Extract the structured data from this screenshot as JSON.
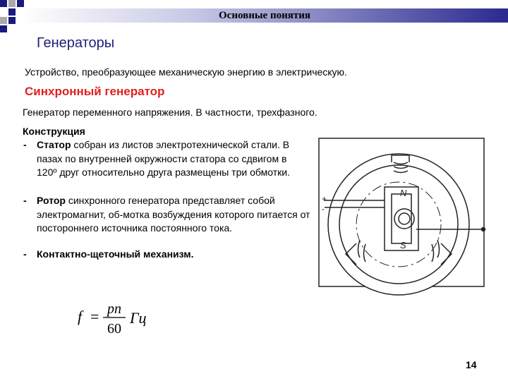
{
  "header": {
    "title": "Основные понятия"
  },
  "heading": "Генераторы",
  "definition": "Устройство, преобразующее механическую энергию в электрическую.",
  "subheading": "Синхронный генератор",
  "description": "Генератор переменного напряжения. В частности, трехфазного.",
  "construction": {
    "title": "Конструкция",
    "items": [
      {
        "marker": "-",
        "bold": "Статор",
        "text": " собран из листов электротехнической стали. В пазах по внутренней окружности статора со сдвигом в 120º друг относительно друга размещены три обмотки."
      },
      {
        "marker": "-",
        "bold": "Ротор",
        "text": " синхронного генератора представляет собой электромагнит, об-мотка возбуждения которого питается от постороннего источника постоянного тока."
      },
      {
        "marker": "-",
        "bold": "Контактно-щеточный механизм."
      }
    ]
  },
  "formula": {
    "lhs": "f",
    "eq": "=",
    "numerator": "pn",
    "denominator": "60",
    "unit": "Гц"
  },
  "diagram": {
    "north": "N",
    "south": "S",
    "plus": "+",
    "minus": "-"
  },
  "page_number": "14"
}
